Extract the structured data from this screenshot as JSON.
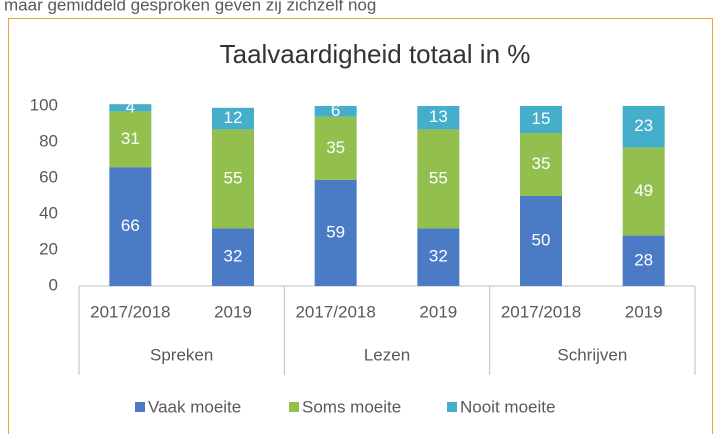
{
  "page_text": "maar gemiddeld gesproken geven zij zichzelf nog",
  "chart_data": {
    "type": "stacked-bar",
    "title": "Taalvaardigheid totaal in %",
    "categories": [
      "2017/2018",
      "2019",
      "2017/2018",
      "2019",
      "2017/2018",
      "2019"
    ],
    "groups": [
      "Spreken",
      "Lezen",
      "Schrijven"
    ],
    "series": [
      {
        "name": "Vaak moeite",
        "color": "#4a7bc4",
        "values": [
          66,
          32,
          59,
          32,
          50,
          28
        ]
      },
      {
        "name": "Soms moeite",
        "color": "#93bf4f",
        "values": [
          31,
          55,
          35,
          55,
          35,
          49
        ]
      },
      {
        "name": "Nooit moeite",
        "color": "#45aecb",
        "values": [
          4,
          12,
          6,
          13,
          15,
          23
        ]
      }
    ],
    "ylim": [
      0,
      100
    ],
    "yticks": [
      0,
      20,
      40,
      60,
      80,
      100
    ],
    "grid": false,
    "legend": "bottom"
  }
}
